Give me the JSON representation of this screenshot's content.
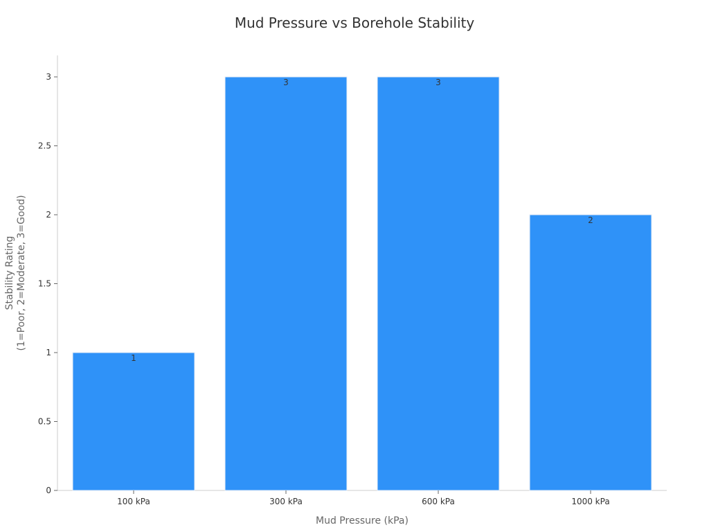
{
  "chart_data": {
    "type": "bar",
    "title": "Mud Pressure vs Borehole Stability",
    "xlabel": "Mud Pressure (kPa)",
    "ylabel_lines": [
      "Stability Rating",
      "(1=Poor, 2=Moderate, 3=Good)"
    ],
    "categories": [
      "100 kPa",
      "300 kPa",
      "600 kPa",
      "1000 kPa"
    ],
    "values": [
      1,
      3,
      3,
      2
    ],
    "data_labels": [
      "1",
      "3",
      "3",
      "2"
    ],
    "ylim": [
      0,
      3.2
    ],
    "yticks": [
      0,
      0.5,
      1,
      1.5,
      2,
      2.5,
      3
    ],
    "ytick_labels": [
      "0",
      "0.5",
      "1",
      "1.5",
      "2",
      "2.5",
      "3"
    ],
    "grid": false,
    "legend": "none",
    "colors": {
      "bar": "#2f92f8",
      "bar_edge": "#e8eef6"
    }
  }
}
